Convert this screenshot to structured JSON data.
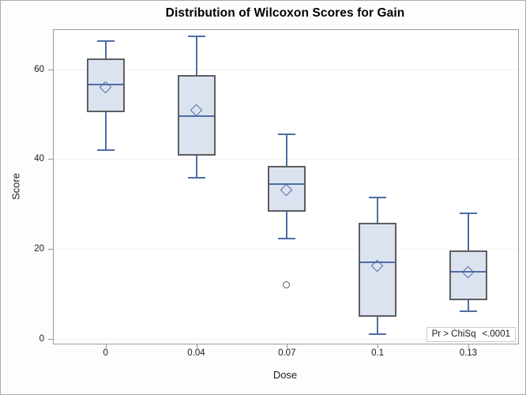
{
  "chart_data": {
    "type": "boxplot",
    "title": "Distribution of Wilcoxon Scores for Gain",
    "xlabel": "Dose",
    "ylabel": "Score",
    "categories": [
      "0",
      "0.04",
      "0.07",
      "0.1",
      "0.13"
    ],
    "yticks": [
      0,
      20,
      40,
      60
    ],
    "ylim": [
      -1,
      68.7
    ],
    "grid": "horizontal",
    "series": [
      {
        "category": "0",
        "whisker_low": 42.0,
        "q1": 50.4,
        "median": 56.5,
        "q3": 62.3,
        "whisker_high": 66.2,
        "mean": 55.8,
        "outliers": []
      },
      {
        "category": "0.04",
        "whisker_low": 35.9,
        "q1": 40.7,
        "median": 49.6,
        "q3": 58.6,
        "whisker_high": 67.3,
        "mean": 50.7,
        "outliers": []
      },
      {
        "category": "0.07",
        "whisker_low": 22.4,
        "q1": 28.3,
        "median": 34.5,
        "q3": 38.4,
        "whisker_high": 45.5,
        "mean": 33.0,
        "outliers": [
          12.0
        ]
      },
      {
        "category": "0.1",
        "whisker_low": 1.0,
        "q1": 5.0,
        "median": 17.0,
        "q3": 25.8,
        "whisker_high": 31.4,
        "mean": 16.2,
        "outliers": []
      },
      {
        "category": "0.13",
        "whisker_low": 6.2,
        "q1": 8.6,
        "median": 14.9,
        "q3": 19.7,
        "whisker_high": 27.9,
        "mean": 14.8,
        "outliers": []
      }
    ],
    "annotation": {
      "label": "Pr > ChiSq",
      "value": "<.0001"
    },
    "colors": {
      "box_fill": "#dce3f0",
      "box_border": "#5d5e60",
      "line_blue": "#4f6da5",
      "outlier": "#58595b",
      "gridline": "#f0f0f0",
      "plot_frame": "#9a9da0",
      "tick": "#919396",
      "figure_bg": "#fdfdfe",
      "figure_border": "#a9abad"
    }
  }
}
